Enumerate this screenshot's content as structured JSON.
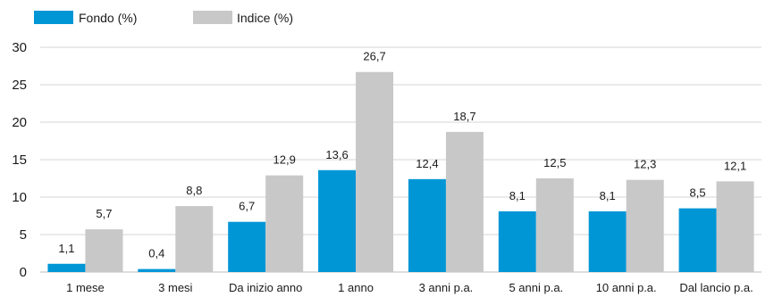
{
  "chart_data": {
    "type": "bar",
    "title": "",
    "xlabel": "",
    "ylabel": "",
    "categories": [
      "1 mese",
      "3 mesi",
      "Da inizio anno",
      "1 anno",
      "3 anni p.a.",
      "5 anni p.a.",
      "10 anni p.a.",
      "Dal lancio p.a."
    ],
    "series": [
      {
        "name": "Fondo (%)",
        "color": "#0096d6",
        "values": [
          1.1,
          0.4,
          6.7,
          13.6,
          12.4,
          8.1,
          8.1,
          8.5
        ],
        "labels": [
          "1,1",
          "0,4",
          "6,7",
          "13,6",
          "12,4",
          "8,1",
          "8,1",
          "8,5"
        ]
      },
      {
        "name": "Indice (%)",
        "color": "#c8c8c8",
        "values": [
          5.7,
          8.8,
          12.9,
          26.7,
          18.7,
          12.5,
          12.3,
          12.1
        ],
        "labels": [
          "5,7",
          "8,8",
          "12,9",
          "26,7",
          "18,7",
          "12,5",
          "12,3",
          "12,1"
        ]
      }
    ],
    "ylim": [
      0,
      30
    ],
    "yticks": [
      0,
      5,
      10,
      15,
      20,
      25,
      30
    ],
    "grid": true,
    "legend": "top-left"
  }
}
